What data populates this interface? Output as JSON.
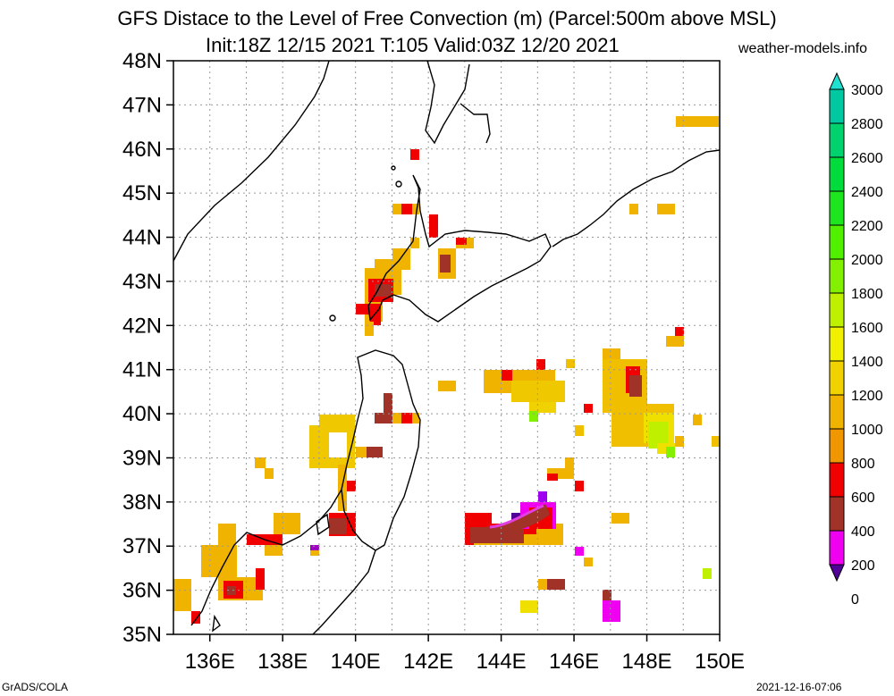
{
  "header": {
    "title_line1": "GFS Distace to the Level of Free Convection (m) (Parcel:500m above MSL)",
    "title_line2": "Init:18Z 12/15 2021 T:105 Valid:03Z 12/20 2021",
    "credit": "weather-models.info"
  },
  "footer": {
    "left": "GrADS/COLA",
    "right": "2021-12-16-07:06"
  },
  "map": {
    "lat_labels": [
      "48N",
      "47N",
      "46N",
      "45N",
      "44N",
      "43N",
      "42N",
      "41N",
      "40N",
      "39N",
      "38N",
      "37N",
      "36N",
      "35N"
    ],
    "lon_labels": [
      "136E",
      "138E",
      "140E",
      "142E",
      "144E",
      "146E",
      "148E",
      "150E"
    ],
    "lon_range": [
      135,
      150
    ],
    "lat_range": [
      35,
      48
    ]
  },
  "colorbar": {
    "levels": [
      "3000",
      "2800",
      "2600",
      "2400",
      "2200",
      "2000",
      "1800",
      "1600",
      "1400",
      "1200",
      "1000",
      "800",
      "600",
      "400",
      "200",
      "0"
    ],
    "colors": [
      "#20e0d0",
      "#00c8a0",
      "#00d26e",
      "#00dc3c",
      "#1ee61e",
      "#50f000",
      "#82f000",
      "#bef000",
      "#f0f000",
      "#f0d200",
      "#f0b400",
      "#f09600",
      "#f00000",
      "#a03228",
      "#f000f0",
      "#500096"
    ]
  }
}
